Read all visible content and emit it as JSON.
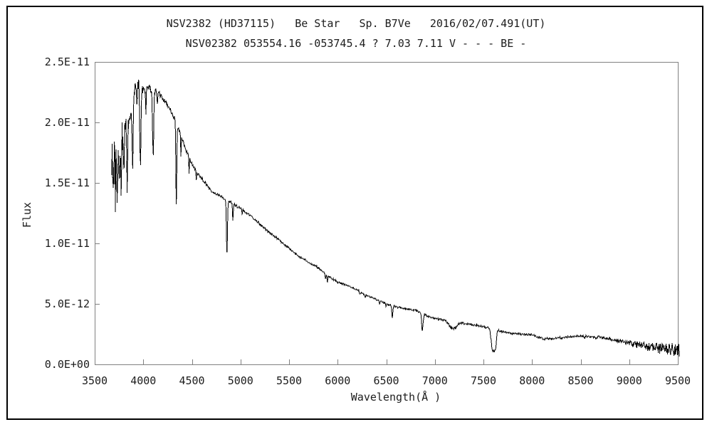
{
  "window": {
    "background": "#ffffff",
    "outer_border_color": "#000000",
    "frame_color": "#808080",
    "text_color": "#1c1c1c"
  },
  "titles": {
    "line1": "NSV2382 (HD37115)   Be Star   Sp. B7Ve   2016/02/07.491(UT)",
    "line2": "NSV02382 053554.16 -053745.4 ? 7.03 7.11 V - - - BE -"
  },
  "chart_data": {
    "type": "line",
    "title": "NSV2382 (HD37115)   Be Star   Sp. B7Ve   2016/02/07.491(UT)",
    "subtitle": "NSV02382 053554.16 -053745.4 ? 7.03 7.11 V - - - BE -",
    "xlabel": "Wavelength(Å )",
    "ylabel": "Flux",
    "grid": false,
    "legend": null,
    "series_color": "#000000",
    "xlim": [
      3500,
      9500
    ],
    "ylim": [
      0,
      2.5e-11
    ],
    "x_ticks": [
      3500,
      4000,
      4500,
      5000,
      5500,
      6000,
      6500,
      7000,
      7500,
      8000,
      8500,
      9000,
      9500
    ],
    "y_ticks": [
      {
        "label": "0.0E+00",
        "value": 0
      },
      {
        "label": "5.0E-12",
        "value": 5e-12
      },
      {
        "label": "1.0E-11",
        "value": 1e-11
      },
      {
        "label": "1.5E-11",
        "value": 1.5e-11
      },
      {
        "label": "2.0E-11",
        "value": 2e-11
      },
      {
        "label": "2.5E-11",
        "value": 2.5e-11
      }
    ],
    "wavelength_range": [
      3675,
      9515
    ],
    "sample_step_angstrom": 4,
    "flux_unit_scale": 1e-12,
    "continuum_points_e12": [
      [
        3675,
        16.2
      ],
      [
        3700,
        16.4
      ],
      [
        3730,
        17.0
      ],
      [
        3760,
        17.8
      ],
      [
        3800,
        19.2
      ],
      [
        3840,
        20.4
      ],
      [
        3880,
        21.6
      ],
      [
        3920,
        22.8
      ],
      [
        3950,
        23.2
      ],
      [
        3980,
        22.7
      ],
      [
        4020,
        22.7
      ],
      [
        4060,
        22.9
      ],
      [
        4100,
        22.5
      ],
      [
        4140,
        22.6
      ],
      [
        4180,
        22.2
      ],
      [
        4220,
        21.8
      ],
      [
        4260,
        21.3
      ],
      [
        4300,
        20.7
      ],
      [
        4340,
        20.0
      ],
      [
        4380,
        19.1
      ],
      [
        4440,
        17.7
      ],
      [
        4500,
        16.6
      ],
      [
        4560,
        15.8
      ],
      [
        4620,
        15.2
      ],
      [
        4700,
        14.3
      ],
      [
        4800,
        13.9
      ],
      [
        4900,
        13.4
      ],
      [
        5000,
        12.9
      ],
      [
        5100,
        12.3
      ],
      [
        5200,
        11.6
      ],
      [
        5300,
        10.9
      ],
      [
        5400,
        10.25
      ],
      [
        5500,
        9.6
      ],
      [
        5600,
        8.95
      ],
      [
        5700,
        8.45
      ],
      [
        5800,
        8.0
      ],
      [
        5900,
        7.3
      ],
      [
        6000,
        6.8
      ],
      [
        6100,
        6.5
      ],
      [
        6200,
        6.15
      ],
      [
        6300,
        5.7
      ],
      [
        6400,
        5.35
      ],
      [
        6500,
        5.0
      ],
      [
        6600,
        4.75
      ],
      [
        6700,
        4.6
      ],
      [
        6800,
        4.45
      ],
      [
        6950,
        3.9
      ],
      [
        7000,
        3.8
      ],
      [
        7100,
        3.65
      ],
      [
        7200,
        3.55
      ],
      [
        7300,
        3.4
      ],
      [
        7400,
        3.25
      ],
      [
        7500,
        3.1
      ],
      [
        7600,
        2.95
      ],
      [
        7700,
        2.7
      ],
      [
        7800,
        2.55
      ],
      [
        7900,
        2.5
      ],
      [
        8000,
        2.45
      ],
      [
        8080,
        2.2
      ],
      [
        8200,
        2.1
      ],
      [
        8300,
        2.2
      ],
      [
        8400,
        2.3
      ],
      [
        8550,
        2.3
      ],
      [
        8700,
        2.25
      ],
      [
        8800,
        2.1
      ],
      [
        8900,
        1.95
      ],
      [
        9000,
        1.75
      ],
      [
        9100,
        1.6
      ],
      [
        9200,
        1.45
      ],
      [
        9300,
        1.35
      ],
      [
        9400,
        1.25
      ],
      [
        9515,
        1.15
      ]
    ],
    "absorption_lines": [
      {
        "center": 3712,
        "depth_e12": 2.5,
        "half_width": 5,
        "power": 2
      },
      {
        "center": 3734,
        "depth_e12": 3.2,
        "half_width": 5,
        "power": 2
      },
      {
        "center": 3750,
        "depth_e12": 3.0,
        "half_width": 5,
        "power": 2
      },
      {
        "center": 3771,
        "depth_e12": 3.8,
        "half_width": 6,
        "power": 2
      },
      {
        "center": 3798,
        "depth_e12": 4.2,
        "half_width": 6,
        "power": 2
      },
      {
        "center": 3835,
        "depth_e12": 5.0,
        "half_width": 7,
        "power": 2
      },
      {
        "center": 3889,
        "depth_e12": 6.0,
        "half_width": 7,
        "power": 2
      },
      {
        "center": 3934,
        "depth_e12": 2.0,
        "half_width": 4,
        "power": 2
      },
      {
        "center": 3970,
        "depth_e12": 6.4,
        "half_width": 7,
        "power": 2
      },
      {
        "center": 4026,
        "depth_e12": 2.0,
        "half_width": 5,
        "power": 2
      },
      {
        "center": 4101,
        "depth_e12": 5.7,
        "half_width": 7,
        "power": 2
      },
      {
        "center": 4144,
        "depth_e12": 1.3,
        "half_width": 4,
        "power": 2
      },
      {
        "center": 4340,
        "depth_e12": 7.0,
        "half_width": 7,
        "power": 2
      },
      {
        "center": 4388,
        "depth_e12": 2.0,
        "half_width": 4,
        "power": 2
      },
      {
        "center": 4472,
        "depth_e12": 1.3,
        "half_width": 4,
        "power": 2
      },
      {
        "center": 4545,
        "depth_e12": 0.8,
        "half_width": 5,
        "power": 2
      },
      {
        "center": 4861,
        "depth_e12": 4.5,
        "half_width": 8,
        "power": 2
      },
      {
        "center": 4922,
        "depth_e12": 1.5,
        "half_width": 4,
        "power": 2
      },
      {
        "center": 5016,
        "depth_e12": 0.5,
        "half_width": 4,
        "power": 2
      },
      {
        "center": 5876,
        "depth_e12": 0.4,
        "half_width": 4,
        "power": 2
      },
      {
        "center": 5893,
        "depth_e12": 0.6,
        "half_width": 5,
        "power": 2
      },
      {
        "center": 6230,
        "depth_e12": 0.25,
        "half_width": 6,
        "power": 2
      },
      {
        "center": 6283,
        "depth_e12": 0.3,
        "half_width": 6,
        "power": 2
      },
      {
        "center": 6433,
        "depth_e12": 0.3,
        "half_width": 5,
        "power": 2
      },
      {
        "center": 6497,
        "depth_e12": 0.3,
        "half_width": 4,
        "power": 2
      },
      {
        "center": 6563,
        "depth_e12": 1.05,
        "half_width": 7,
        "power": 2
      },
      {
        "center": 6872,
        "depth_e12": 1.45,
        "half_width": 10,
        "power": 2
      },
      {
        "center": 7186,
        "depth_e12": 0.65,
        "half_width": 50,
        "power": 2
      },
      {
        "center": 7605,
        "depth_e12": 1.85,
        "half_width": 30,
        "power": 4
      },
      {
        "center": 8120,
        "depth_e12": 0.12,
        "half_width": 15,
        "power": 2
      },
      {
        "center": 8542,
        "depth_e12": 0.15,
        "half_width": 6,
        "power": 2
      },
      {
        "center": 8662,
        "depth_e12": 0.15,
        "half_width": 6,
        "power": 2
      }
    ],
    "noise_amplitude_e12": [
      [
        3675,
        2.2
      ],
      [
        3700,
        2.1
      ],
      [
        3750,
        1.8
      ],
      [
        3800,
        1.4
      ],
      [
        3850,
        1.05
      ],
      [
        3900,
        0.6
      ],
      [
        3950,
        0.4
      ],
      [
        4000,
        0.32
      ],
      [
        4100,
        0.26
      ],
      [
        4200,
        0.2
      ],
      [
        4400,
        0.16
      ],
      [
        4700,
        0.12
      ],
      [
        5000,
        0.1
      ],
      [
        5500,
        0.08
      ],
      [
        6000,
        0.075
      ],
      [
        6500,
        0.07
      ],
      [
        7000,
        0.07
      ],
      [
        7150,
        0.13
      ],
      [
        7300,
        0.09
      ],
      [
        7600,
        0.08
      ],
      [
        8000,
        0.07
      ],
      [
        8400,
        0.09
      ],
      [
        8700,
        0.12
      ],
      [
        8900,
        0.17
      ],
      [
        9050,
        0.25
      ],
      [
        9200,
        0.35
      ],
      [
        9350,
        0.48
      ],
      [
        9450,
        0.58
      ],
      [
        9515,
        0.68
      ]
    ],
    "noise_seed": 20160207
  }
}
